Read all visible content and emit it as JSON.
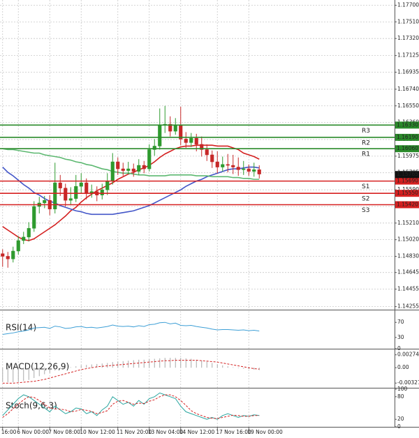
{
  "chart_data": [
    {
      "type": "candlestick",
      "grid": true,
      "up_color": "#2e9a2e",
      "down_color": "#c62828",
      "ylim": [
        1.1422,
        1.1776
      ],
      "yticks": [
        {
          "value": 1.177,
          "label": "1.17700"
        },
        {
          "value": 1.1751,
          "label": "1.17510"
        },
        {
          "value": 1.1732,
          "label": "1.17320"
        },
        {
          "value": 1.17125,
          "label": "1.17125"
        },
        {
          "value": 1.16935,
          "label": "1.16935"
        },
        {
          "value": 1.1674,
          "label": "1.16740"
        },
        {
          "value": 1.1655,
          "label": "1.16550"
        },
        {
          "value": 1.1636,
          "label": "1.16360"
        },
        {
          "value": 1.16165,
          "label": "1.16165"
        },
        {
          "value": 1.15975,
          "label": "1.15975"
        },
        {
          "value": 1.15785,
          "label": "1.15785"
        },
        {
          "value": 1.1559,
          "label": "1.15590"
        },
        {
          "value": 1.154,
          "label": "1.15400"
        },
        {
          "value": 1.1521,
          "label": "1.15210"
        },
        {
          "value": 1.1502,
          "label": "1.15020"
        },
        {
          "value": 1.1483,
          "label": "1.14830"
        },
        {
          "value": 1.14645,
          "label": "1.14645"
        },
        {
          "value": 1.14455,
          "label": "1.14455"
        },
        {
          "value": 1.14255,
          "label": "1.14255"
        }
      ],
      "open": [
        1.1486,
        1.1483,
        1.148,
        1.1489,
        1.1501,
        1.1505,
        1.1515,
        1.154,
        1.1544,
        1.1547,
        1.1537,
        1.1567,
        1.1561,
        1.1547,
        1.1549,
        1.1563,
        1.1567,
        1.1555,
        1.1557,
        1.1553,
        1.1559,
        1.1569,
        1.1591,
        1.1583,
        1.1581,
        1.1583,
        1.158,
        1.1587,
        1.1583,
        1.1605,
        1.1609,
        1.1633,
        1.1634,
        1.1626,
        1.1633,
        1.1617,
        1.1613,
        1.1618,
        1.1611,
        1.1605,
        1.1599,
        1.1591,
        1.1585,
        1.1588,
        1.1587,
        1.1585,
        1.1582,
        1.1583,
        1.158,
        1.1582
      ],
      "high": [
        1.1491,
        1.1488,
        1.1494,
        1.1506,
        1.1511,
        1.1522,
        1.1546,
        1.1551,
        1.1552,
        1.1553,
        1.159,
        1.1576,
        1.1566,
        1.1562,
        1.1576,
        1.1578,
        1.1572,
        1.1565,
        1.1563,
        1.1566,
        1.1578,
        1.1601,
        1.1596,
        1.159,
        1.1591,
        1.1589,
        1.1594,
        1.1592,
        1.1611,
        1.1617,
        1.1652,
        1.1655,
        1.1643,
        1.1641,
        1.1654,
        1.1625,
        1.1624,
        1.1623,
        1.162,
        1.1611,
        1.1604,
        1.1603,
        1.1597,
        1.16,
        1.1599,
        1.1596,
        1.1592,
        1.1588,
        1.159,
        1.1587
      ],
      "low": [
        1.1471,
        1.147,
        1.1476,
        1.1485,
        1.1497,
        1.15,
        1.1511,
        1.1532,
        1.1538,
        1.153,
        1.1532,
        1.1552,
        1.154,
        1.1542,
        1.1545,
        1.1555,
        1.1548,
        1.155,
        1.1546,
        1.1548,
        1.1553,
        1.1565,
        1.1576,
        1.1575,
        1.1577,
        1.1574,
        1.1576,
        1.1578,
        1.158,
        1.1598,
        1.1605,
        1.1624,
        1.162,
        1.1622,
        1.161,
        1.1607,
        1.1608,
        1.1603,
        1.1597,
        1.1592,
        1.1584,
        1.1578,
        1.158,
        1.1579,
        1.1577,
        1.1575,
        1.1576,
        1.1575,
        1.1574,
        1.1572
      ],
      "close": [
        1.1483,
        1.148,
        1.1489,
        1.1501,
        1.1505,
        1.1515,
        1.154,
        1.1544,
        1.1547,
        1.1537,
        1.1567,
        1.1561,
        1.1547,
        1.1549,
        1.1563,
        1.1567,
        1.1555,
        1.1557,
        1.1553,
        1.1559,
        1.1569,
        1.1591,
        1.1583,
        1.1581,
        1.1583,
        1.158,
        1.1587,
        1.1583,
        1.1605,
        1.1609,
        1.1633,
        1.1634,
        1.1626,
        1.1633,
        1.1617,
        1.1613,
        1.1618,
        1.1611,
        1.1605,
        1.1599,
        1.1591,
        1.1585,
        1.1588,
        1.1587,
        1.1585,
        1.1582,
        1.1583,
        1.158,
        1.1582,
        1.1577
      ],
      "series": [
        {
          "color": "#d42020",
          "values": [
            1.1517,
            1.1513,
            1.1509,
            1.1505,
            1.1502,
            1.1501,
            1.1503,
            1.1507,
            1.1511,
            1.1515,
            1.1519,
            1.1524,
            1.1529,
            1.1535,
            1.1539,
            1.1545,
            1.155,
            1.1554,
            1.1558,
            1.1561,
            1.1564,
            1.1567,
            1.1571,
            1.1574,
            1.1577,
            1.1579,
            1.1582,
            1.1584,
            1.1587,
            1.1591,
            1.1596,
            1.16,
            1.1603,
            1.1606,
            1.1608,
            1.1609,
            1.1609,
            1.161,
            1.161,
            1.161,
            1.161,
            1.1609,
            1.1609,
            1.1609,
            1.1607,
            1.1605,
            1.1601,
            1.1599,
            1.1597,
            1.1594
          ]
        },
        {
          "color": "#4356c8",
          "values": [
            1.1585,
            1.1579,
            1.1575,
            1.157,
            1.1565,
            1.1561,
            1.1556,
            1.1553,
            1.1549,
            1.1546,
            1.1544,
            1.1541,
            1.1539,
            1.1537,
            1.1535,
            1.1534,
            1.1532,
            1.1531,
            1.1531,
            1.1531,
            1.1531,
            1.1531,
            1.1532,
            1.1533,
            1.1534,
            1.1535,
            1.1537,
            1.1539,
            1.1541,
            1.1544,
            1.1547,
            1.155,
            1.1553,
            1.1556,
            1.1559,
            1.1563,
            1.1566,
            1.1569,
            1.1571,
            1.1574,
            1.1576,
            1.1578,
            1.158,
            1.1582,
            1.1583,
            1.1583,
            1.1584,
            1.1585,
            1.1585,
            1.1584
          ]
        },
        {
          "color": "#5cb870",
          "values": [
            1.1606,
            1.1605,
            1.1605,
            1.1604,
            1.1603,
            1.1602,
            1.1601,
            1.1601,
            1.1599,
            1.1598,
            1.1597,
            1.1596,
            1.1594,
            1.1593,
            1.1591,
            1.159,
            1.1588,
            1.1587,
            1.1585,
            1.1583,
            1.1582,
            1.158,
            1.1579,
            1.1578,
            1.1578,
            1.1577,
            1.1576,
            1.1576,
            1.1575,
            1.1575,
            1.1575,
            1.1575,
            1.1576,
            1.1576,
            1.1576,
            1.1576,
            1.1576,
            1.1575,
            1.1575,
            1.1575,
            1.1574,
            1.1574,
            1.1574,
            1.1574,
            1.1573,
            1.1573,
            1.1572,
            1.1572,
            1.1571,
            1.1571
          ]
        }
      ],
      "levels": [
        {
          "name": "R3",
          "value": 1.1633,
          "label": "1.16330",
          "color": "#2a8a2a"
        },
        {
          "name": "R2",
          "value": 1.1619,
          "label": "1.16190",
          "color": "#2a8a2a"
        },
        {
          "name": "R1",
          "value": 1.1606,
          "label": "1.16060",
          "color": "#2a8a2a"
        },
        {
          "name": "S1",
          "value": 1.1569,
          "label": "1.15690",
          "color": "#d62020"
        },
        {
          "name": "S2",
          "value": 1.1555,
          "label": "1.15550",
          "color": "#d62020"
        },
        {
          "name": "S3",
          "value": 1.1542,
          "label": "1.15420",
          "color": "#d62020"
        }
      ],
      "last_price": {
        "value": 1.15765,
        "label": "1.15765",
        "color": "#111111"
      }
    },
    {
      "type": "line",
      "title": "RSI(14)",
      "ylim": [
        0,
        100
      ],
      "yticks": [
        70,
        30,
        0
      ],
      "series": [
        {
          "color": "#3d9fd6",
          "values": [
            38,
            40,
            42,
            45,
            47,
            50,
            55,
            56,
            57,
            54,
            60,
            58,
            54,
            55,
            58,
            59,
            56,
            57,
            55,
            57,
            59,
            63,
            60,
            59,
            60,
            58,
            61,
            59,
            64,
            65,
            69,
            70,
            66,
            68,
            62,
            61,
            62,
            59,
            57,
            55,
            52,
            50,
            51,
            51,
            50,
            49,
            50,
            48,
            49,
            47
          ]
        }
      ]
    },
    {
      "type": "line",
      "title": "MACD(12,26,9)",
      "ylim": [
        -0.00428,
        0.00375
      ],
      "yticks": [
        0.002749,
        {
          "value": 0,
          "label": "0.00"
        },
        -0.003275
      ],
      "histogram": {
        "color": "#a8a8a8",
        "values": [
          -0.003,
          -0.0031,
          -0.0031,
          -0.003,
          -0.0028,
          -0.0026,
          -0.0022,
          -0.0018,
          -0.0014,
          -0.0011,
          -0.0006,
          -0.0003,
          -0.0001,
          0.0001,
          0.0003,
          0.0005,
          0.0006,
          0.0007,
          0.0008,
          0.0009,
          0.001,
          0.0012,
          0.0013,
          0.0014,
          0.0015,
          0.0016,
          0.0017,
          0.0017,
          0.0018,
          0.0019,
          0.002,
          0.0021,
          0.0021,
          0.0021,
          0.0021,
          0.002,
          0.0019,
          0.0017,
          0.0015,
          0.0013,
          0.001,
          0.0007,
          0.0005,
          0.0003,
          0.0001,
          -0.0001,
          -0.0002,
          -0.0003,
          -0.0004,
          -0.0005
        ]
      },
      "series": [
        {
          "color": "#d42020",
          "dashed": true,
          "values": [
            -0.0033,
            -0.0033,
            -0.0033,
            -0.0032,
            -0.0031,
            -0.003,
            -0.0029,
            -0.0027,
            -0.0025,
            -0.0022,
            -0.0019,
            -0.0016,
            -0.0013,
            -0.001,
            -0.0007,
            -0.0004,
            -0.0002,
            0.0,
            0.0002,
            0.0003,
            0.0004,
            0.0005,
            0.0006,
            0.0007,
            0.0008,
            0.0009,
            0.001,
            0.0011,
            0.0012,
            0.0013,
            0.0014,
            0.0015,
            0.0015,
            0.0016,
            0.0016,
            0.0016,
            0.0016,
            0.0016,
            0.0015,
            0.0014,
            0.0013,
            0.0012,
            0.001,
            0.0008,
            0.0006,
            0.0004,
            0.0002,
            0.0,
            -0.0002,
            -0.0003
          ]
        }
      ]
    },
    {
      "type": "line",
      "title": "Stoch(9,6,3)",
      "ylim": [
        0,
        100
      ],
      "yticks": [
        100,
        80,
        20,
        0
      ],
      "series": [
        {
          "color": "#2aa6a0",
          "values": [
            30,
            45,
            60,
            75,
            85,
            80,
            70,
            60,
            50,
            40,
            55,
            45,
            35,
            40,
            50,
            48,
            35,
            40,
            30,
            45,
            55,
            80,
            70,
            60,
            65,
            55,
            70,
            60,
            75,
            80,
            90,
            85,
            80,
            75,
            55,
            40,
            35,
            30,
            25,
            20,
            25,
            20,
            30,
            35,
            30,
            25,
            30,
            28,
            32,
            30
          ]
        },
        {
          "color": "#d42020",
          "dashed": true,
          "values": [
            25,
            35,
            48,
            60,
            72,
            80,
            78,
            70,
            60,
            50,
            48,
            47,
            45,
            40,
            42,
            46,
            44,
            41,
            35,
            38,
            43,
            60,
            68,
            70,
            65,
            60,
            63,
            62,
            68,
            72,
            80,
            85,
            85,
            80,
            70,
            57,
            43,
            35,
            30,
            25,
            23,
            22,
            25,
            28,
            31,
            30,
            28,
            28,
            30,
            30
          ]
        }
      ],
      "xticks": [
        {
          "value": 0,
          "label": "16:00"
        },
        {
          "value": 3,
          "label": "6 Nov 00:00"
        },
        {
          "value": 9,
          "label": "7 Nov 08:00"
        },
        {
          "value": 15,
          "label": "10 Nov 12:00"
        },
        {
          "value": 22,
          "label": "11 Nov 20:00"
        },
        {
          "value": 28,
          "label": "13 Nov 04:00"
        },
        {
          "value": 34,
          "label": "14 Nov 12:00"
        },
        {
          "value": 41,
          "label": "17 Nov 16:00"
        },
        {
          "value": 47,
          "label": "19 Nov 00:00"
        }
      ]
    }
  ]
}
